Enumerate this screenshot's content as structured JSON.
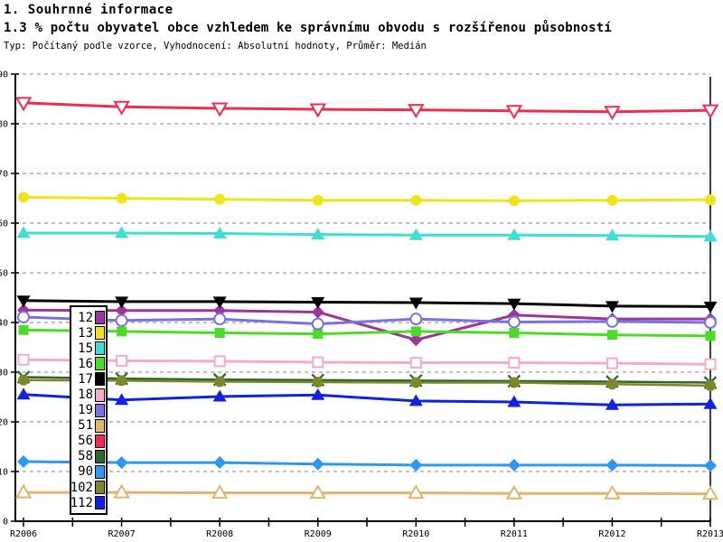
{
  "header": {
    "title1": "1. Souhrnné informace",
    "title2": "1.3 % počtu obyvatel obce vzhledem ke správnímu obvodu s rozšířenou působností",
    "subtitle": "Typ: Počítaný podle vzorce, Vyhodnocení: Absolutní hodnoty, Průměr: Medián"
  },
  "chart_data": {
    "type": "line",
    "title": "1.3 % počtu obyvatel obce vzhledem ke správnímu obvodu s rozšířenou působností",
    "x_labels": [
      "R2006",
      "R2007",
      "R2008",
      "R2009",
      "R2010",
      "R2011",
      "R2012",
      "R2013"
    ],
    "ylim": [
      0,
      90
    ],
    "ytick_step": 10,
    "grid": "horizontal dashed gridlines every 10, gray",
    "legend_position": "overlay left, vertical box",
    "colors": {
      "grid": "#ABABAB",
      "axis": "#000000",
      "background": "#FFFFFF"
    },
    "series": [
      {
        "label": "12",
        "color": "#9A369A",
        "marker": "diamond",
        "fill": "solid",
        "values": [
          42.5,
          42.4,
          42.4,
          42.1,
          36.5,
          41.5,
          40.7,
          40.7
        ]
      },
      {
        "label": "13",
        "color": "#EDE41F",
        "marker": "circle",
        "fill": "solid",
        "values": [
          65.2,
          65.0,
          64.8,
          64.6,
          64.6,
          64.5,
          64.6,
          64.7
        ]
      },
      {
        "label": "15",
        "color": "#3EDFD2",
        "marker": "triangle-up",
        "fill": "solid",
        "values": [
          58.0,
          58.0,
          57.9,
          57.7,
          57.6,
          57.6,
          57.5,
          57.3
        ]
      },
      {
        "label": "16",
        "color": "#4CDB29",
        "marker": "square",
        "fill": "solid",
        "values": [
          38.5,
          38.2,
          37.9,
          37.7,
          38.2,
          37.9,
          37.5,
          37.3
        ]
      },
      {
        "label": "17",
        "color": "#000000",
        "marker": "triangle-down",
        "fill": "solid",
        "values": [
          44.4,
          44.2,
          44.2,
          44.1,
          44.0,
          43.8,
          43.3,
          43.2
        ]
      },
      {
        "label": "18",
        "color": "#F2ACC9",
        "marker": "square",
        "fill": "open",
        "values": [
          32.5,
          32.3,
          32.2,
          32.0,
          31.9,
          31.9,
          31.8,
          31.6
        ]
      },
      {
        "label": "19",
        "color": "#7B72E2",
        "marker": "circle",
        "fill": "open",
        "values": [
          41.1,
          40.4,
          40.7,
          39.7,
          40.7,
          40.1,
          40.2,
          40.0
        ]
      },
      {
        "label": "51",
        "color": "#DFB56F",
        "marker": "triangle-up",
        "fill": "open",
        "values": [
          5.8,
          5.8,
          5.7,
          5.7,
          5.7,
          5.6,
          5.6,
          5.5
        ]
      },
      {
        "label": "56",
        "color": "#EE2D52",
        "marker": "triangle-down",
        "fill": "open",
        "values": [
          84.2,
          83.4,
          83.1,
          82.9,
          82.8,
          82.6,
          82.4,
          82.7
        ]
      },
      {
        "label": "58",
        "color": "#2E652E",
        "marker": "x-cross",
        "fill": "line",
        "values": [
          29.0,
          28.7,
          28.5,
          28.4,
          28.3,
          28.2,
          28.1,
          27.9
        ]
      },
      {
        "label": "90",
        "color": "#3097F0",
        "marker": "diamond",
        "fill": "solid",
        "values": [
          12.0,
          11.8,
          11.8,
          11.5,
          11.3,
          11.3,
          11.3,
          11.2
        ]
      },
      {
        "label": "102",
        "color": "#7D8629",
        "marker": "circle",
        "fill": "solid",
        "values": [
          28.4,
          28.3,
          28.1,
          28.0,
          27.9,
          27.9,
          27.6,
          27.3
        ]
      },
      {
        "label": "112",
        "color": "#1122E0",
        "marker": "triangle-up",
        "fill": "solid",
        "values": [
          25.5,
          24.4,
          25.1,
          25.4,
          24.2,
          24.0,
          23.4,
          23.6
        ]
      }
    ]
  }
}
